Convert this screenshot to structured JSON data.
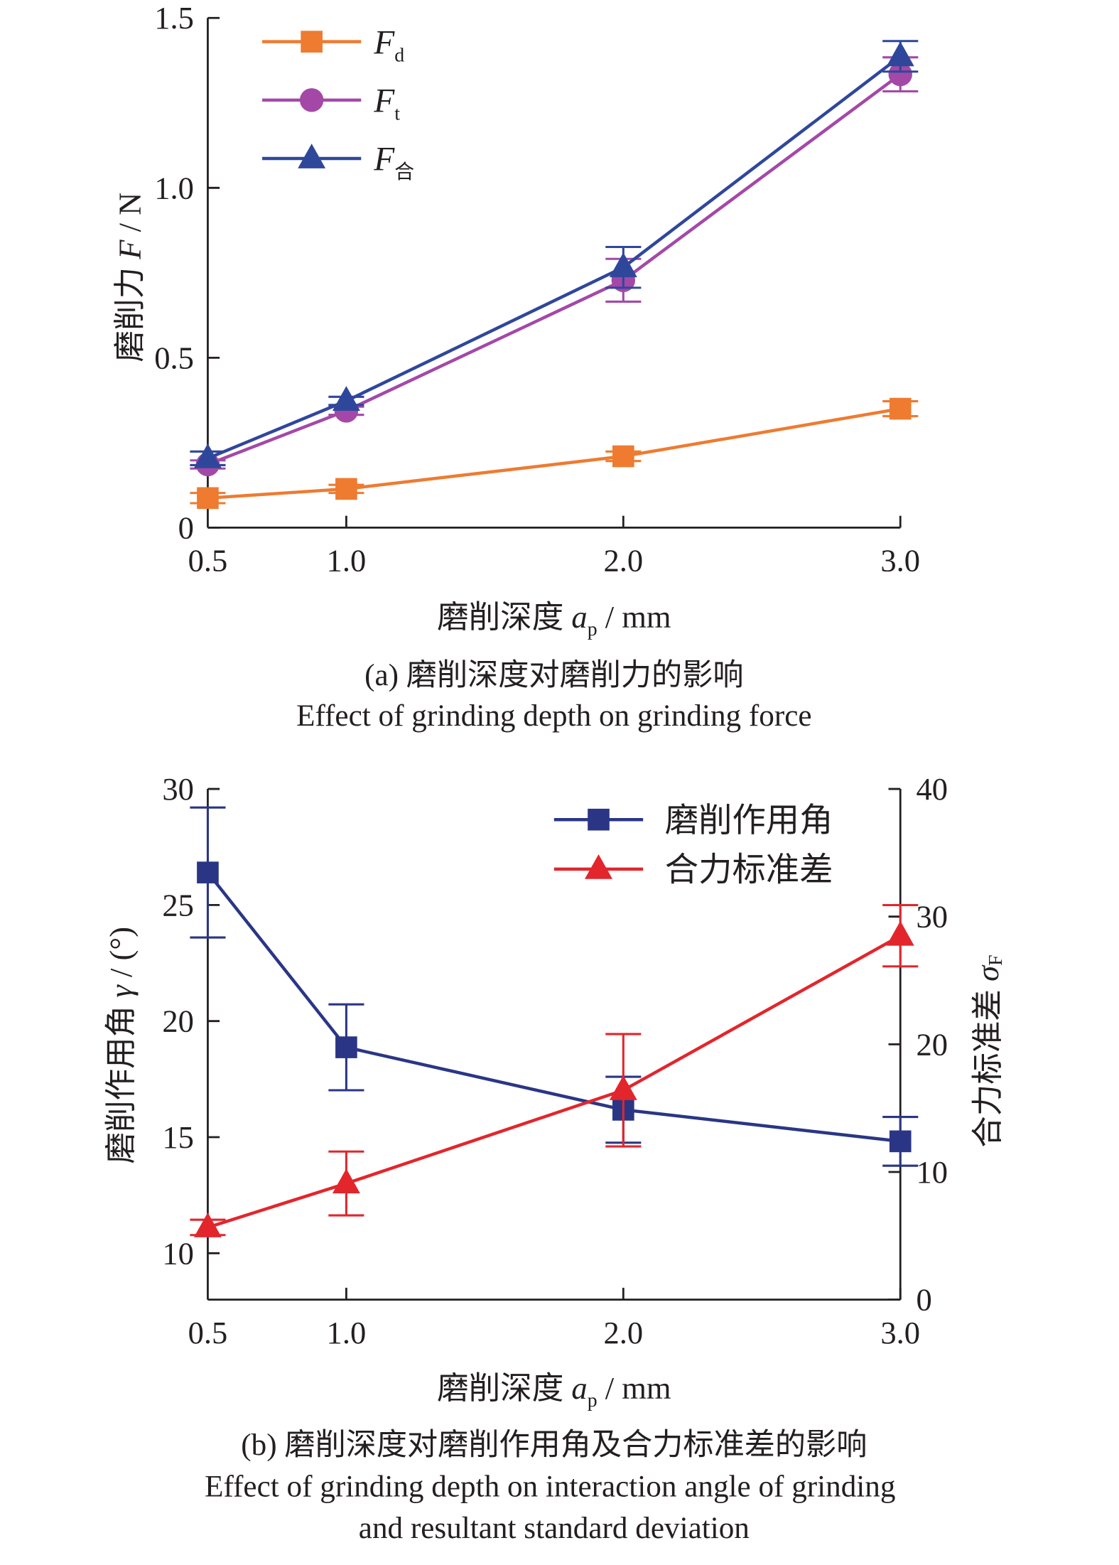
{
  "figure": {
    "panel_a_caption_cn": "(a) 磨削深度对磨削力的影响",
    "panel_a_caption_en": "Effect of grinding depth on grinding force",
    "panel_b_caption_cn": "(b) 磨削深度对磨削作用角及合力标准差的影响",
    "panel_b_caption_en_line1": "Effect of grinding depth on interaction angle of grinding",
    "panel_b_caption_en_line2": "and resultant standard deviation"
  },
  "chart_data": [
    {
      "type": "line",
      "x": [
        0.5,
        1.0,
        2.0,
        3.0
      ],
      "xtick_labels": [
        "0.5",
        "1.0",
        "2.0",
        "3.0"
      ],
      "xlim": [
        0.5,
        3.0
      ],
      "xlabel": {
        "prefix": "磨削深度 ",
        "symbol": "a",
        "subscript": "p",
        "unit": " / mm"
      },
      "ylabel": {
        "prefix": "磨削力 ",
        "symbol": "F",
        "unit": " / N"
      },
      "ylim": [
        0,
        1.5
      ],
      "yticks": [
        0,
        0.5,
        1.0,
        1.5
      ],
      "ytick_labels": [
        "0",
        "0.5",
        "1.0",
        "1.5"
      ],
      "grid": false,
      "legend_position": "top-left",
      "series": [
        {
          "name": "F",
          "name_subscript": "d",
          "marker": "square",
          "color": "#ee7b30",
          "values": [
            0.087,
            0.114,
            0.21,
            0.35
          ],
          "errors": [
            0.015,
            0.012,
            0.014,
            0.022
          ]
        },
        {
          "name": "F",
          "name_subscript": "t",
          "marker": "circle",
          "color": "#a448a8",
          "values": [
            0.186,
            0.344,
            0.728,
            1.334
          ],
          "errors": [
            0.012,
            0.012,
            0.063,
            0.05
          ]
        },
        {
          "name": "F",
          "name_subscript": "合",
          "marker": "triangle",
          "color": "#2f479b",
          "values": [
            0.204,
            0.373,
            0.766,
            1.387
          ],
          "errors": [
            0.02,
            0.012,
            0.06,
            0.045
          ]
        }
      ]
    },
    {
      "type": "line",
      "x": [
        0.5,
        1.0,
        2.0,
        3.0
      ],
      "xtick_labels": [
        "0.5",
        "1.0",
        "2.0",
        "3.0"
      ],
      "xlim": [
        0.5,
        3.0
      ],
      "xlabel": {
        "prefix": "磨削深度 ",
        "symbol": "a",
        "subscript": "p",
        "unit": " / mm"
      },
      "ylabel": {
        "prefix": "磨削作用角 ",
        "symbol": "γ",
        "unit": " / (°)"
      },
      "ylim": [
        8,
        30
      ],
      "yticks": [
        10,
        15,
        20,
        25,
        30
      ],
      "ytick_labels": [
        "10",
        "15",
        "20",
        "25",
        "30"
      ],
      "y2label": {
        "prefix": "合力标准差 ",
        "symbol": "σ",
        "subscript": "F"
      },
      "y2lim": [
        0,
        40
      ],
      "y2ticks": [
        0,
        10,
        20,
        30,
        40
      ],
      "y2tick_labels": [
        "0",
        "10",
        "20",
        "30",
        "40"
      ],
      "grid": false,
      "legend_position": "top-right",
      "series": [
        {
          "name": "磨削作用角",
          "axis": "left",
          "marker": "square",
          "color": "#2a3685",
          "values": [
            26.4,
            18.87,
            16.18,
            14.82
          ],
          "errors": [
            2.8,
            1.85,
            1.42,
            1.05
          ]
        },
        {
          "name": "合力标准差",
          "axis": "right",
          "marker": "triangle",
          "color": "#e2262c",
          "values": [
            5.66,
            9.1,
            16.4,
            28.5
          ],
          "errors": [
            0.6,
            2.5,
            4.4,
            2.4
          ]
        }
      ]
    }
  ]
}
